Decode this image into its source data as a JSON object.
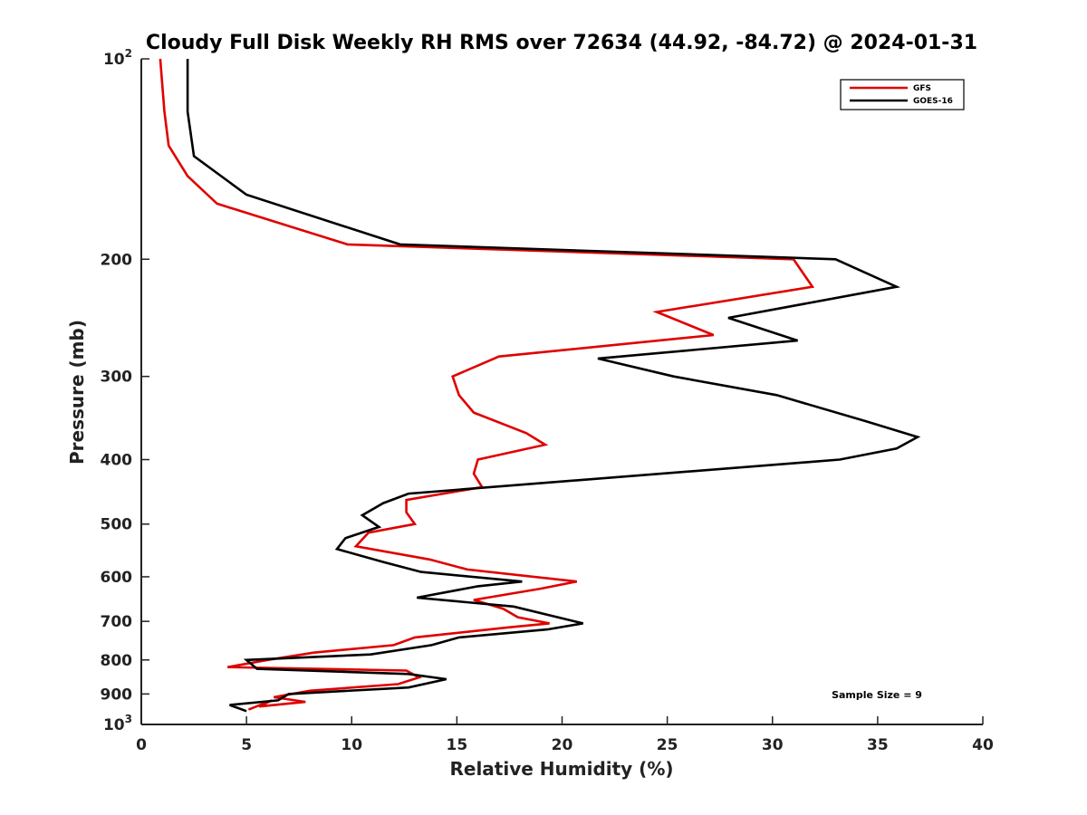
{
  "chart_data": {
    "type": "line",
    "title": "Cloudy Full Disk Weekly RH RMS over 72634 (44.92, -84.72) @ 2024-01-31",
    "xlabel": "Relative Humidity (%)",
    "ylabel": "Pressure (mb)",
    "xlim": [
      0,
      40
    ],
    "ylim": [
      100,
      1000
    ],
    "y_scale": "log",
    "y_reversed": true,
    "grid": false,
    "legend_position": "top-right",
    "x_ticks": [
      "0",
      "5",
      "10",
      "15",
      "20",
      "25",
      "30",
      "35",
      "40"
    ],
    "x_tick_values": [
      0,
      5,
      10,
      15,
      20,
      25,
      30,
      35,
      40
    ],
    "y_ticks": [
      {
        "value": 100,
        "base": "10",
        "exp": "2"
      },
      {
        "value": 200,
        "label": "200"
      },
      {
        "value": 300,
        "label": "300"
      },
      {
        "value": 400,
        "label": "400"
      },
      {
        "value": 500,
        "label": "500"
      },
      {
        "value": 600,
        "label": "600"
      },
      {
        "value": 700,
        "label": "700"
      },
      {
        "value": 800,
        "label": "800"
      },
      {
        "value": 900,
        "label": "900"
      },
      {
        "value": 1000,
        "base": "10",
        "exp": "3"
      }
    ],
    "series": [
      {
        "name": "GFS",
        "color": "#e00000",
        "points": [
          [
            0.9,
            100
          ],
          [
            1.1,
            120
          ],
          [
            1.3,
            135
          ],
          [
            2.2,
            150
          ],
          [
            3.6,
            165
          ],
          [
            9.8,
            190
          ],
          [
            31.0,
            200
          ],
          [
            31.9,
            220
          ],
          [
            24.5,
            240
          ],
          [
            27.2,
            260
          ],
          [
            17.0,
            280
          ],
          [
            14.8,
            300
          ],
          [
            15.1,
            320
          ],
          [
            15.8,
            340
          ],
          [
            18.3,
            365
          ],
          [
            19.2,
            380
          ],
          [
            16.0,
            400
          ],
          [
            15.8,
            420
          ],
          [
            16.2,
            440
          ],
          [
            12.6,
            460
          ],
          [
            12.6,
            480
          ],
          [
            13.0,
            500
          ],
          [
            10.8,
            515
          ],
          [
            10.2,
            540
          ],
          [
            13.7,
            565
          ],
          [
            15.5,
            585
          ],
          [
            20.7,
            610
          ],
          [
            19.0,
            625
          ],
          [
            15.8,
            650
          ],
          [
            17.2,
            670
          ],
          [
            17.9,
            690
          ],
          [
            19.4,
            705
          ],
          [
            17.4,
            715
          ],
          [
            13.0,
            740
          ],
          [
            12.0,
            760
          ],
          [
            8.2,
            780
          ],
          [
            6.0,
            800
          ],
          [
            4.1,
            820
          ],
          [
            12.6,
            830
          ],
          [
            13.2,
            850
          ],
          [
            12.2,
            870
          ],
          [
            8.0,
            890
          ],
          [
            6.3,
            910
          ],
          [
            7.8,
            925
          ],
          [
            5.6,
            940
          ],
          [
            6.2,
            920
          ],
          [
            5.1,
            950
          ]
        ]
      },
      {
        "name": "GOES-16",
        "color": "#000000",
        "points": [
          [
            2.2,
            100
          ],
          [
            2.2,
            120
          ],
          [
            2.5,
            140
          ],
          [
            5.0,
            160
          ],
          [
            12.3,
            190
          ],
          [
            33.0,
            200
          ],
          [
            35.9,
            220
          ],
          [
            27.9,
            245
          ],
          [
            31.2,
            265
          ],
          [
            21.7,
            282
          ],
          [
            25.3,
            300
          ],
          [
            30.2,
            320
          ],
          [
            34.4,
            350
          ],
          [
            36.9,
            370
          ],
          [
            35.9,
            385
          ],
          [
            33.2,
            400
          ],
          [
            12.7,
            450
          ],
          [
            11.5,
            465
          ],
          [
            10.5,
            485
          ],
          [
            11.3,
            505
          ],
          [
            9.7,
            525
          ],
          [
            9.3,
            545
          ],
          [
            11.5,
            570
          ],
          [
            13.3,
            590
          ],
          [
            18.1,
            610
          ],
          [
            16.0,
            620
          ],
          [
            13.1,
            645
          ],
          [
            17.7,
            665
          ],
          [
            21.0,
            705
          ],
          [
            19.3,
            720
          ],
          [
            15.1,
            740
          ],
          [
            13.8,
            760
          ],
          [
            10.9,
            785
          ],
          [
            5.0,
            800
          ],
          [
            5.5,
            825
          ],
          [
            12.7,
            840
          ],
          [
            14.5,
            855
          ],
          [
            12.7,
            880
          ],
          [
            7.0,
            900
          ],
          [
            6.5,
            920
          ],
          [
            4.2,
            935
          ],
          [
            5.0,
            955
          ]
        ]
      }
    ],
    "legend": [
      {
        "name": "GFS",
        "color": "#e00000"
      },
      {
        "name": "GOES-16",
        "color": "#000000"
      }
    ],
    "annotation": "Sample Size = 9"
  }
}
